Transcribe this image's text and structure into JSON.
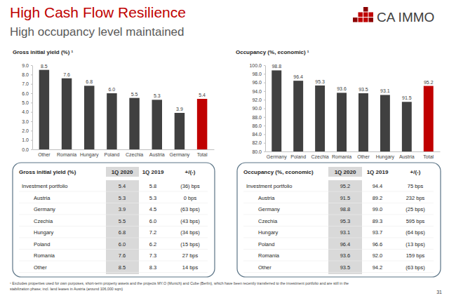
{
  "header": {
    "title": "High Cash Flow Resilience",
    "subtitle": "High occupancy level maintained",
    "logo_text": "CA IMMO",
    "page_number": "31"
  },
  "chart_data": [
    {
      "type": "bar",
      "title": "Gross initial yield (%) ¹",
      "categories": [
        "Other",
        "Romania",
        "Hungary",
        "Poland",
        "Czechia",
        "Austria",
        "Germany",
        "Total"
      ],
      "values": [
        8.5,
        7.6,
        6.8,
        6.0,
        5.5,
        5.3,
        3.9,
        5.4
      ],
      "value_labels": [
        "8.5",
        "7.6",
        "6.8",
        "6.0",
        "5.5",
        "5.3",
        "3.9",
        "5.4"
      ],
      "colors": [
        "#404040",
        "#404040",
        "#404040",
        "#404040",
        "#404040",
        "#404040",
        "#404040",
        "#c00000"
      ],
      "ylim": [
        0,
        9
      ],
      "yticks": [
        {
          "value": 0,
          "label": "0.0"
        },
        {
          "value": 1,
          "label": "1.0"
        },
        {
          "value": 2,
          "label": "2.0"
        },
        {
          "value": 3,
          "label": "3.0"
        },
        {
          "value": 4,
          "label": "4.0"
        },
        {
          "value": 5,
          "label": "5.0"
        },
        {
          "value": 6,
          "label": "6.0"
        },
        {
          "value": 7,
          "label": "7.0"
        },
        {
          "value": 8,
          "label": "8.0"
        },
        {
          "value": 9,
          "label": "9.0"
        }
      ],
      "data_labels": true,
      "grid": false
    },
    {
      "type": "bar",
      "title": "Occupancy (%, economic) ¹",
      "categories": [
        "Germany",
        "Poland",
        "Czechia",
        "Romania",
        "Other",
        "Hungary",
        "Austria",
        "Total"
      ],
      "values": [
        98.8,
        96.4,
        95.3,
        93.6,
        93.5,
        93.1,
        91.5,
        95.2
      ],
      "value_labels": [
        "98.8",
        "96.4",
        "95.3",
        "93.6",
        "93.5",
        "93.1",
        "91.5",
        "95.2"
      ],
      "colors": [
        "#404040",
        "#404040",
        "#404040",
        "#404040",
        "#404040",
        "#404040",
        "#404040",
        "#c00000"
      ],
      "ylim": [
        80,
        100
      ],
      "yticks": [
        {
          "value": 80,
          "label": "80.0"
        },
        {
          "value": 82,
          "label": "82.0"
        },
        {
          "value": 84,
          "label": "84.0"
        },
        {
          "value": 86,
          "label": "86.0"
        },
        {
          "value": 88,
          "label": "88.0"
        },
        {
          "value": 90,
          "label": "90.0"
        },
        {
          "value": 92,
          "label": "92.0"
        },
        {
          "value": 94,
          "label": "94.0"
        },
        {
          "value": 96,
          "label": "96.0"
        },
        {
          "value": 98,
          "label": "98.0"
        },
        {
          "value": 100,
          "label": "100.0"
        }
      ],
      "data_labels": true,
      "grid": false
    }
  ],
  "tables": [
    {
      "header": [
        "Gross initial yield (%)",
        "1Q 2020",
        "1Q 2019",
        "+/(-)"
      ],
      "rows": [
        [
          "Investment portfolio",
          "5.4",
          "5.8",
          "(36) bps"
        ],
        [
          "Austria",
          "5.3",
          "5.3",
          "0 bps"
        ],
        [
          "Germany",
          "3.9",
          "4.5",
          "(63 bps)"
        ],
        [
          "Czechia",
          "5.5",
          "6.0",
          "(43 bps)"
        ],
        [
          "Hungary",
          "6.8",
          "7.2",
          "(34 bps)"
        ],
        [
          "Poland",
          "6.0",
          "6.2",
          "(15 bps)"
        ],
        [
          "Romania",
          "7.6",
          "7.3",
          "27 bps"
        ],
        [
          "Other",
          "8.5",
          "8.3",
          "14 bps"
        ]
      ]
    },
    {
      "header": [
        "Occupancy (%, economic)",
        "1Q 2020",
        "1Q 2019",
        "+/(-)"
      ],
      "rows": [
        [
          "Investment portfolio",
          "95.2",
          "94.4",
          "75 bps"
        ],
        [
          "Austria",
          "91.5",
          "89.2",
          "232 bps"
        ],
        [
          "Germany",
          "98.8",
          "99.0",
          "(25 bps)"
        ],
        [
          "Czechia",
          "95.3",
          "89.3",
          "595 bps"
        ],
        [
          "Hungary",
          "93.1",
          "93.7",
          "(64 bps)"
        ],
        [
          "Poland",
          "96.4",
          "96.6",
          "(13 bps)"
        ],
        [
          "Romania",
          "93.6",
          "92.0",
          "159 bps"
        ],
        [
          "Other",
          "93.5",
          "94.2",
          "(63 bps)"
        ]
      ]
    }
  ],
  "footnote": [
    "¹ Excludes properties used for own purposes, short-term property assets and the projects MY.O (Munich) and Cube (Berlin), which have been recently transferred to the investment portfolio and are still in the",
    "stabilization phase; incl. land leases in Austria (around 106,000 sqm)"
  ]
}
